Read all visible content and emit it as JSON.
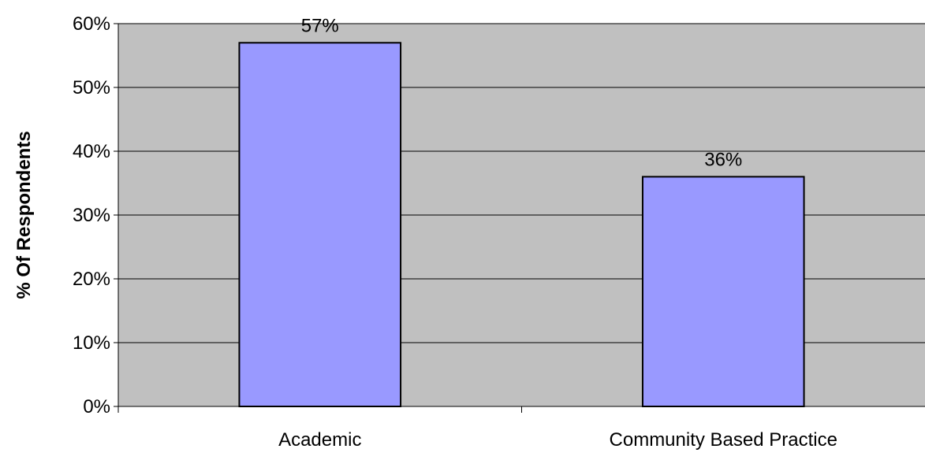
{
  "chart_data": {
    "type": "bar",
    "title": "",
    "xlabel": "",
    "ylabel": "% Of Respondents",
    "categories": [
      "Academic",
      "Community Based Practice"
    ],
    "series": [
      {
        "values": [
          57,
          36
        ]
      }
    ],
    "data_labels": [
      "57%",
      "36%"
    ],
    "ylim": [
      0,
      60
    ],
    "yticks": [
      0,
      10,
      20,
      30,
      40,
      50,
      60
    ],
    "ytick_labels": [
      "0%",
      "10%",
      "20%",
      "30%",
      "40%",
      "50%",
      "60%"
    ],
    "grid": true,
    "legend": "none",
    "colors": {
      "plot_background": "#C0C0C0",
      "bar_fill": "#9999FF",
      "bar_stroke": "#000000",
      "gridline": "#000000"
    }
  }
}
